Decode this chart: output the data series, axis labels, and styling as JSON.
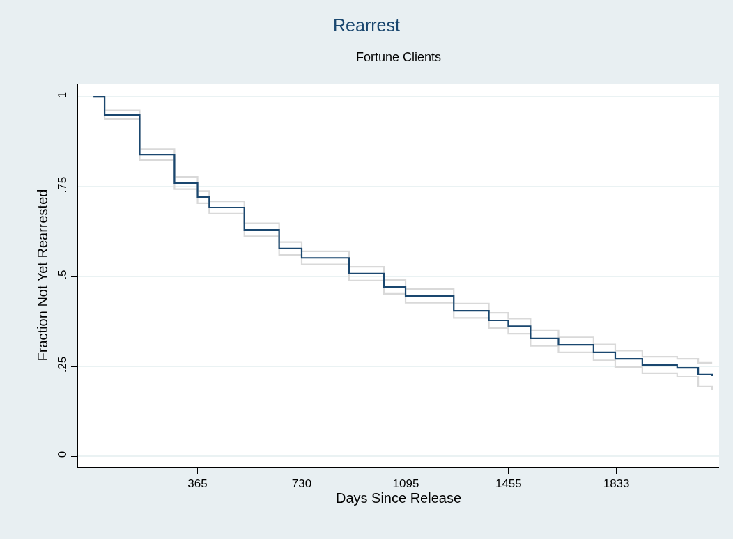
{
  "chart_data": {
    "type": "step",
    "title": "Rearrest",
    "subtitle": "Fortune Clients",
    "xlabel": "Days Since Release",
    "ylabel": "Fraction Not Yet Rearrested",
    "x": [
      0,
      39,
      162,
      284,
      365,
      406,
      529,
      651,
      730,
      896,
      1018,
      1094,
      1263,
      1386,
      1454,
      1532,
      1630,
      1753,
      1829,
      1924,
      2046,
      2120,
      2169
    ],
    "series": [
      {
        "color": "#d9d9d9",
        "values": [
          1,
          0.938,
          0.824,
          0.743,
          0.704,
          0.675,
          0.612,
          0.56,
          0.534,
          0.489,
          0.452,
          0.427,
          0.385,
          0.357,
          0.341,
          0.307,
          0.289,
          0.267,
          0.248,
          0.231,
          0.221,
          0.194,
          0.184
        ]
      },
      {
        "color": "#d9d9d9",
        "values": [
          1,
          0.962,
          0.854,
          0.777,
          0.738,
          0.709,
          0.648,
          0.596,
          0.57,
          0.527,
          0.49,
          0.465,
          0.425,
          0.399,
          0.383,
          0.349,
          0.331,
          0.311,
          0.294,
          0.277,
          0.271,
          0.26,
          0.26
        ]
      },
      {
        "color": "#1a476f",
        "values": [
          1,
          0.95,
          0.839,
          0.76,
          0.721,
          0.692,
          0.63,
          0.578,
          0.552,
          0.508,
          0.471,
          0.446,
          0.405,
          0.378,
          0.362,
          0.328,
          0.31,
          0.289,
          0.271,
          0.254,
          0.246,
          0.227,
          0.223
        ]
      }
    ],
    "xlim": [
      -54,
      2193
    ],
    "xticks": [
      365,
      730,
      1095,
      1455,
      1833
    ],
    "ylim": [
      -0.029,
      1.037
    ],
    "yticks": [
      0,
      {
        "value": 0.25,
        "label": ".25"
      },
      {
        "value": 0.5,
        "label": ".5"
      },
      {
        "value": 0.75,
        "label": ".75"
      },
      1
    ],
    "grid": "y",
    "marker": "none",
    "line_style": "solid"
  }
}
